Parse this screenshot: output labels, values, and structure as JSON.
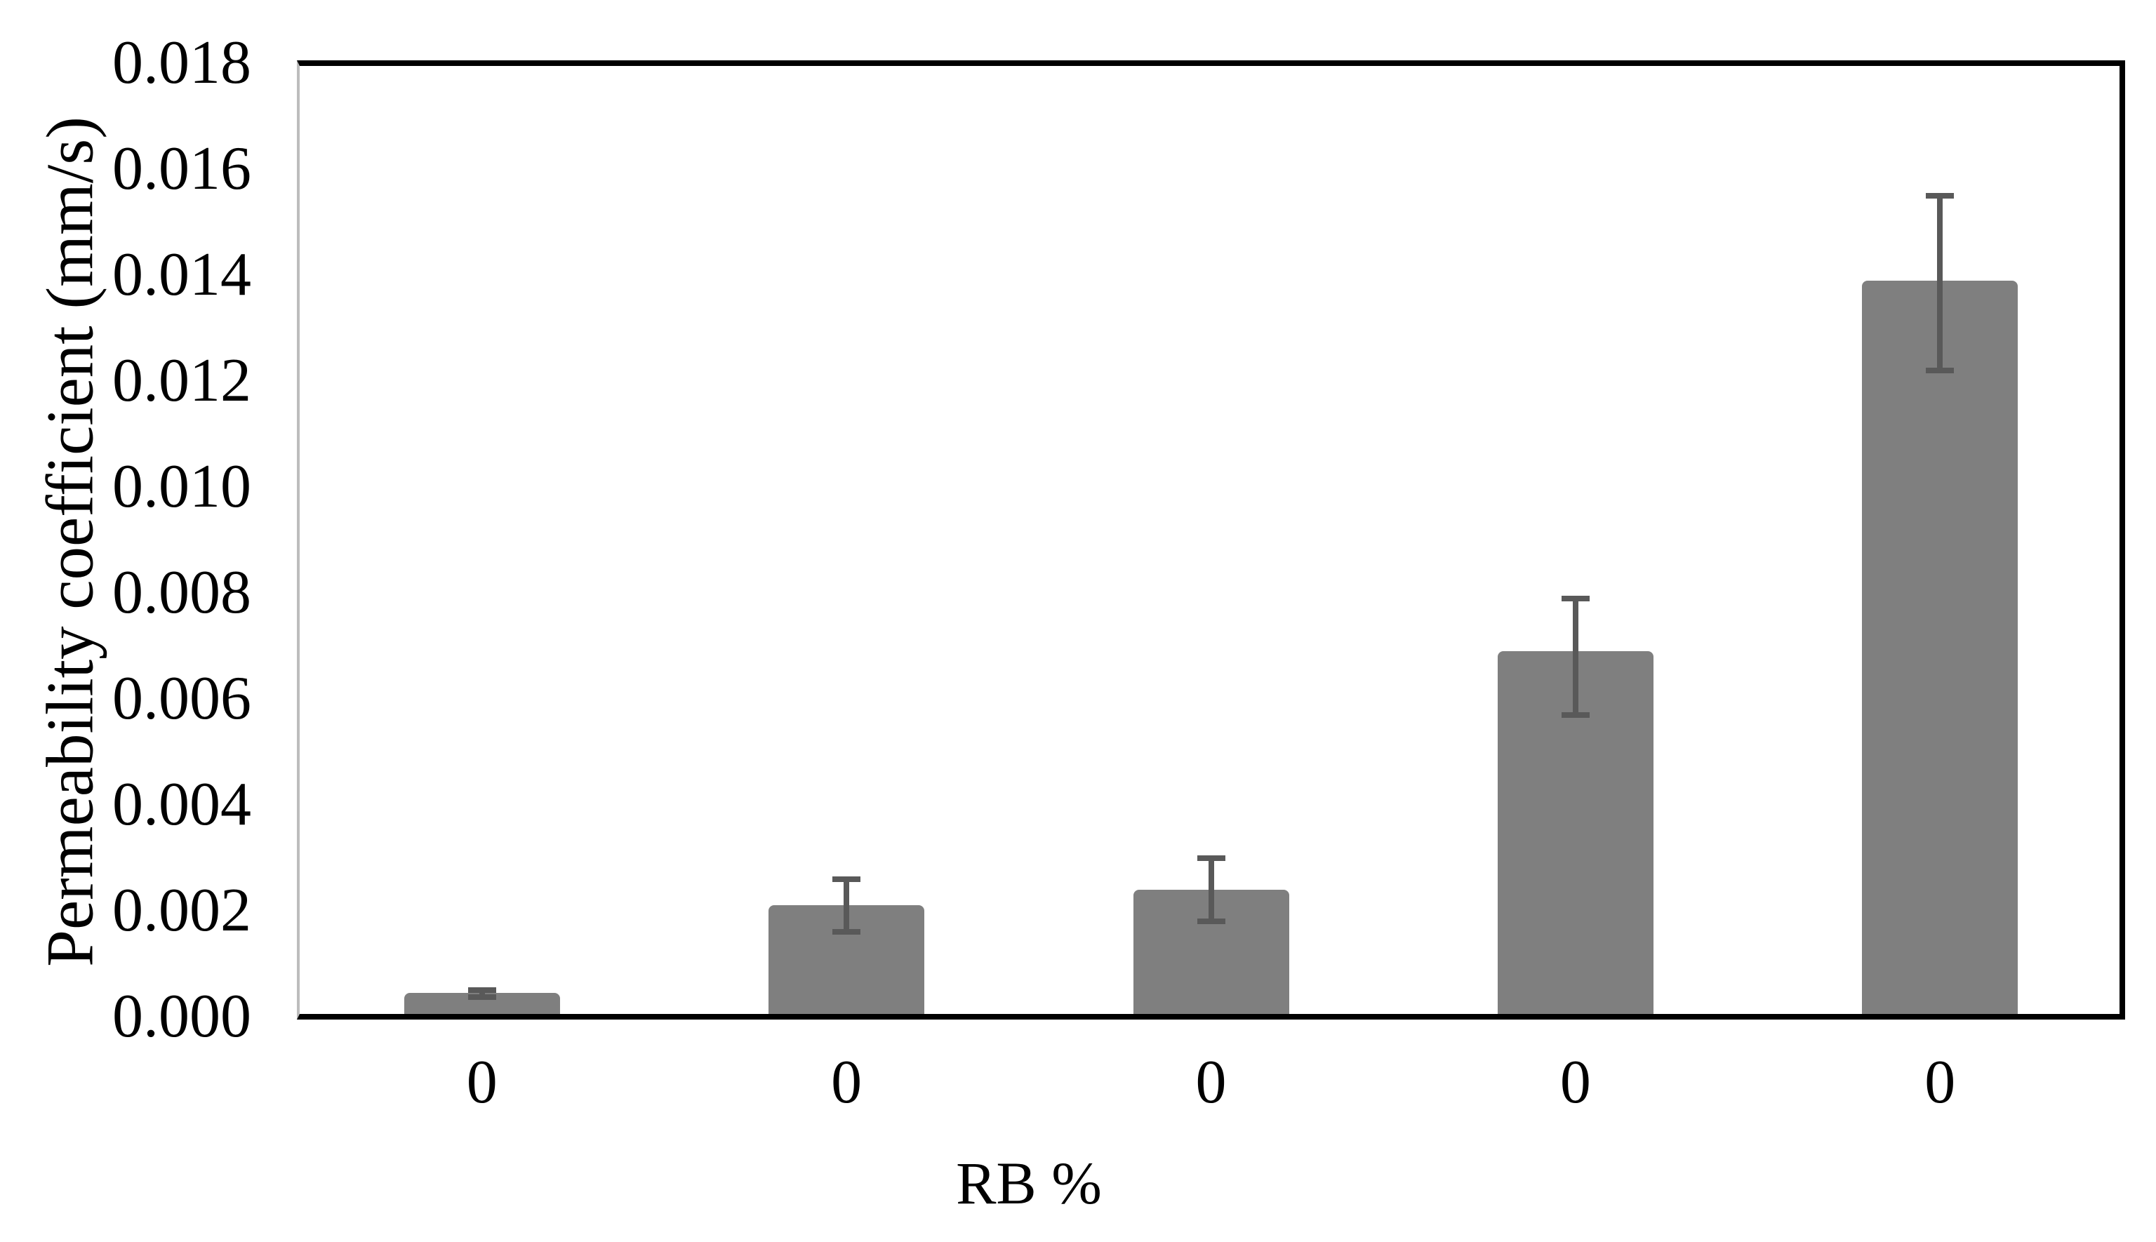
{
  "chart_data": {
    "type": "bar",
    "title": "",
    "xlabel": "RB %",
    "ylabel": "Permeability coefficient (mm/s)",
    "categories": [
      "0",
      "0",
      "0",
      "0",
      "0"
    ],
    "series": [
      {
        "name": "Permeability coefficient",
        "values": [
          0.00045,
          0.0021,
          0.0024,
          0.0069,
          0.0139
        ],
        "error_plus": [
          5e-05,
          0.0005,
          0.0006,
          0.001,
          0.0016
        ],
        "error_minus": [
          8e-05,
          0.0005,
          0.0006,
          0.0012,
          0.0017
        ]
      }
    ],
    "ylim": [
      0,
      0.018
    ],
    "ytick_step": 0.002,
    "yticks": [
      "0.000",
      "0.002",
      "0.004",
      "0.006",
      "0.008",
      "0.010",
      "0.012",
      "0.014",
      "0.016",
      "0.018"
    ],
    "grid": false,
    "legend": false,
    "colors": {
      "bar_fill": "#7f7f7f",
      "error_bar": "#595959",
      "frame": "#000000",
      "left_axis_line": "#bdbdbd",
      "text": "#000000",
      "background": "#ffffff"
    }
  }
}
